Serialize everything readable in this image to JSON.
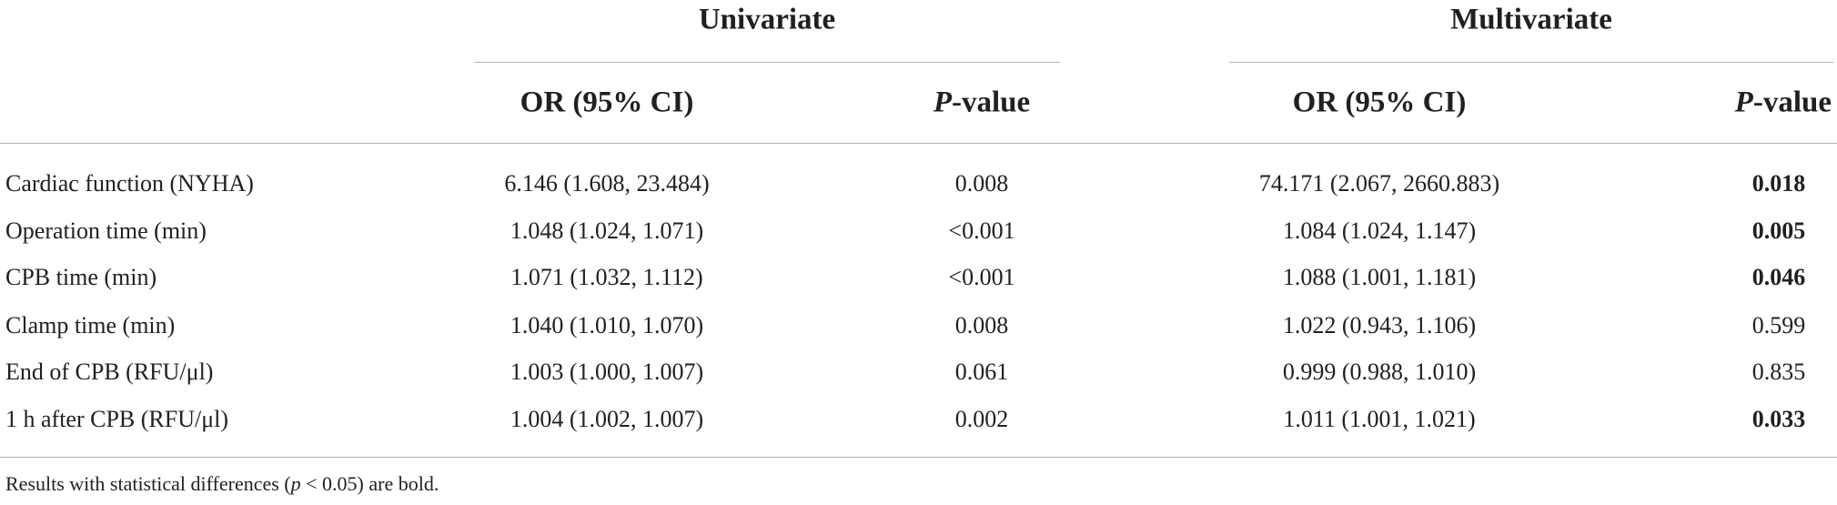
{
  "table": {
    "groups": [
      "Univariate",
      "Multivariate"
    ],
    "columns": [
      "OR (95% CI)",
      "P-value",
      "OR (95% CI)",
      "P-value"
    ],
    "rows": [
      [
        "Cardiac function (NYHA)",
        "6.146 (1.608, 23.484)",
        "0.008",
        "74.171 (2.067, 2660.883)",
        "0.018"
      ],
      [
        "Operation time (min)",
        "1.048 (1.024, 1.071)",
        "<0.001",
        "1.084 (1.024, 1.147)",
        "0.005"
      ],
      [
        "CPB time (min)",
        "1.071 (1.032, 1.112)",
        "<0.001",
        "1.088 (1.001, 1.181)",
        "0.046"
      ],
      [
        "Clamp time (min)",
        "1.040 (1.010, 1.070)",
        "0.008",
        "1.022 (0.943, 1.106)",
        "0.599"
      ],
      [
        "End of CPB (RFU/μl)",
        "1.003 (1.000, 1.007)",
        "0.061",
        "0.999 (0.988, 1.010)",
        "0.835"
      ],
      [
        "1 h after CPB (RFU/μl)",
        "1.004 (1.002, 1.007)",
        "0.002",
        "1.011 (1.001, 1.021)",
        "0.033"
      ]
    ],
    "multivariate_p_bold": [
      true,
      true,
      true,
      false,
      false,
      true
    ]
  },
  "footnote": [
    "Results with statistical differences (",
    "p",
    " < 0.05) are bold."
  ]
}
